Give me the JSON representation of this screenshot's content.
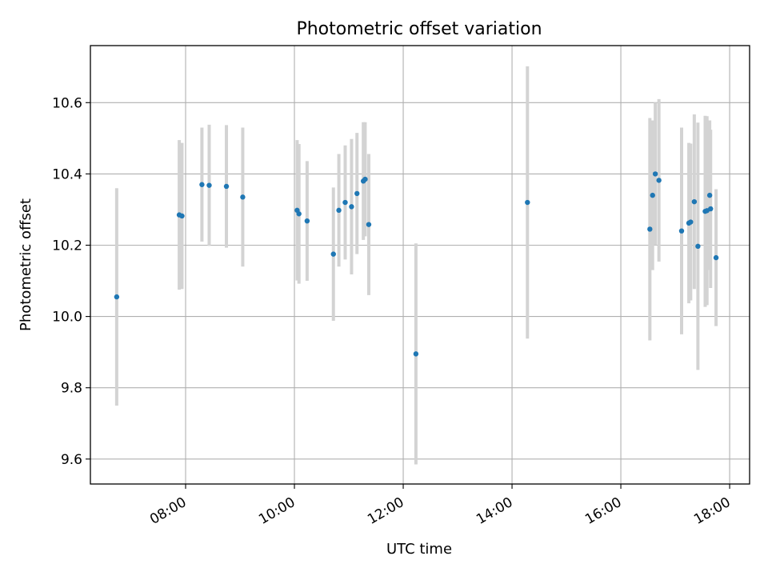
{
  "chart_data": {
    "type": "scatter",
    "title": "Photometric offset variation",
    "xlabel": "UTC time",
    "ylabel": "Photometric offset",
    "x_ticks": [
      "08:00",
      "10:00",
      "12:00",
      "14:00",
      "16:00",
      "18:00"
    ],
    "y_ticks": [
      "9.6",
      "9.8",
      "10.0",
      "10.2",
      "10.4",
      "10.6"
    ],
    "xlim": [
      "06:15",
      "18:22"
    ],
    "ylim": [
      9.53,
      10.76
    ],
    "grid": true,
    "errorbar_color": "#d3d3d3",
    "point_color": "#1f77b4",
    "points": [
      {
        "x": "06:44",
        "y": 10.055,
        "err": 0.305
      },
      {
        "x": "07:53",
        "y": 10.285,
        "err": 0.21
      },
      {
        "x": "07:56",
        "y": 10.282,
        "err": 0.205
      },
      {
        "x": "08:18",
        "y": 10.37,
        "err": 0.16
      },
      {
        "x": "08:26",
        "y": 10.368,
        "err": 0.17
      },
      {
        "x": "08:45",
        "y": 10.365,
        "err": 0.172
      },
      {
        "x": "09:03",
        "y": 10.335,
        "err": 0.195
      },
      {
        "x": "10:03",
        "y": 10.298,
        "err": 0.197
      },
      {
        "x": "10:05",
        "y": 10.288,
        "err": 0.196
      },
      {
        "x": "10:14",
        "y": 10.268,
        "err": 0.168
      },
      {
        "x": "10:43",
        "y": 10.175,
        "err": 0.187
      },
      {
        "x": "10:49",
        "y": 10.298,
        "err": 0.158
      },
      {
        "x": "10:56",
        "y": 10.32,
        "err": 0.16
      },
      {
        "x": "11:03",
        "y": 10.308,
        "err": 0.19
      },
      {
        "x": "11:09",
        "y": 10.345,
        "err": 0.17
      },
      {
        "x": "11:16",
        "y": 10.38,
        "err": 0.165
      },
      {
        "x": "11:18",
        "y": 10.385,
        "err": 0.16
      },
      {
        "x": "11:22",
        "y": 10.258,
        "err": 0.198
      },
      {
        "x": "12:14",
        "y": 9.895,
        "err": 0.31
      },
      {
        "x": "14:17",
        "y": 10.32,
        "err": 0.382
      },
      {
        "x": "16:32",
        "y": 10.245,
        "err": 0.312
      },
      {
        "x": "16:35",
        "y": 10.34,
        "err": 0.21
      },
      {
        "x": "16:38",
        "y": 10.4,
        "err": 0.2
      },
      {
        "x": "16:42",
        "y": 10.382,
        "err": 0.228
      },
      {
        "x": "17:07",
        "y": 10.24,
        "err": 0.29
      },
      {
        "x": "17:15",
        "y": 10.262,
        "err": 0.225
      },
      {
        "x": "17:17",
        "y": 10.265,
        "err": 0.22
      },
      {
        "x": "17:21",
        "y": 10.322,
        "err": 0.245
      },
      {
        "x": "17:25",
        "y": 10.197,
        "err": 0.347
      },
      {
        "x": "17:33",
        "y": 10.295,
        "err": 0.268
      },
      {
        "x": "17:35",
        "y": 10.297,
        "err": 0.265
      },
      {
        "x": "17:38",
        "y": 10.34,
        "err": 0.21
      },
      {
        "x": "17:39",
        "y": 10.302,
        "err": 0.222
      },
      {
        "x": "17:45",
        "y": 10.165,
        "err": 0.192
      }
    ]
  }
}
